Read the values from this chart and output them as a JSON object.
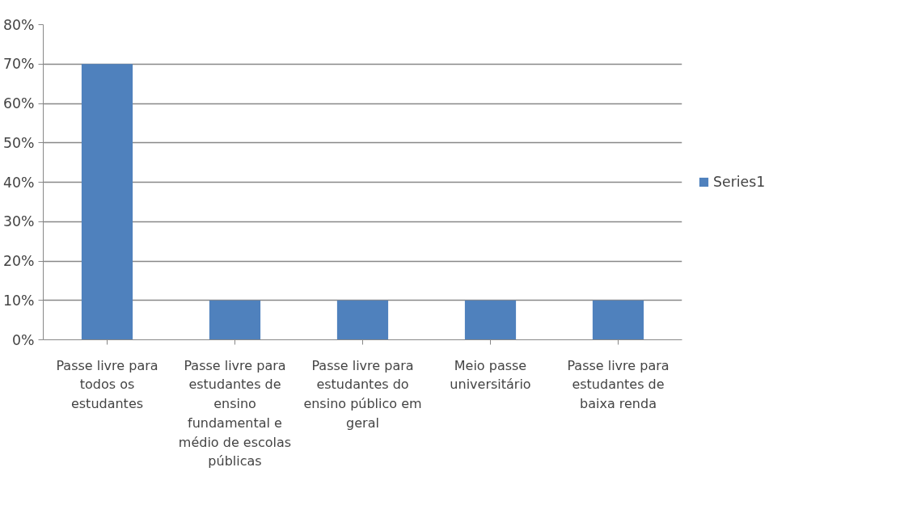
{
  "chart_data": {
    "type": "bar",
    "categories": [
      "Passe livre para todos os estudantes",
      "Passe livre para estudantes de ensino fundamental e médio de escolas públicas",
      "Passe livre para estudantes do ensino público em geral",
      "Meio passe universitário",
      "Passe livre para estudantes de baixa renda"
    ],
    "series": [
      {
        "name": "Series1",
        "color": "#4f81bd",
        "values": [
          70,
          10,
          10,
          10,
          10
        ]
      }
    ],
    "ylim": [
      0,
      80
    ],
    "yticks": [
      {
        "value": 0,
        "label": "0%"
      },
      {
        "value": 10,
        "label": "10%"
      },
      {
        "value": 20,
        "label": "20%"
      },
      {
        "value": 30,
        "label": "30%"
      },
      {
        "value": 40,
        "label": "40%"
      },
      {
        "value": 50,
        "label": "50%"
      },
      {
        "value": 60,
        "label": "60%"
      },
      {
        "value": 70,
        "label": "70%"
      },
      {
        "value": 80,
        "label": "80%"
      }
    ],
    "grid": "y",
    "legend": "right"
  }
}
